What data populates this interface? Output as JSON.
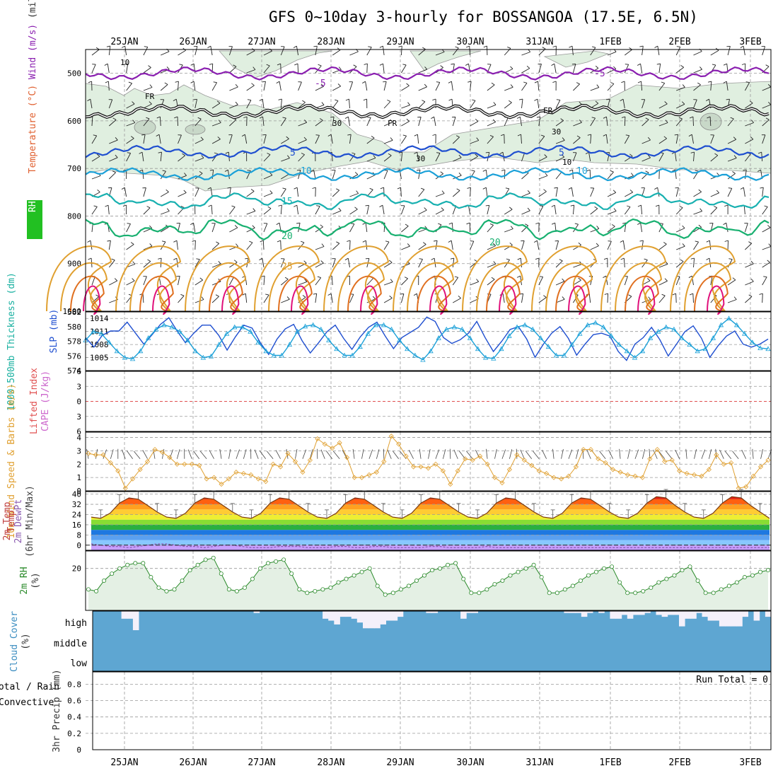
{
  "title": "GFS 0~10day 3-hourly for BOSSANGOA (17.5E, 6.5N)",
  "dates": [
    "25JAN",
    "26JAN",
    "27JAN",
    "28JAN",
    "29JAN",
    "30JAN",
    "31JAN",
    "1FEB",
    "2FEB",
    "3FEB"
  ],
  "run_total": "Run Total = 0",
  "colors": {
    "purple": "#8a1fb0",
    "blue": "#1f4fd0",
    "lblue": "#1aa0d8",
    "teal": "#18b0b0",
    "green": "#18b070",
    "orange": "#e0a030",
    "dorange": "#e07020",
    "magenta": "#e0107a",
    "rhfill": "#e0efe0",
    "cloud": "#5ea6d2",
    "grid": "#999999"
  },
  "chart_data": [
    {
      "type": "line",
      "panel": "upper-air",
      "ylabel_parts": [
        "RH (%)",
        "Temperature (°C)",
        "Wind (m/s)",
        "(millibars)"
      ],
      "yticks": [
        500,
        600,
        700,
        800,
        900,
        1000
      ],
      "ylim": [
        450,
        1000
      ],
      "y_reversed": true,
      "isotherm_labels": [
        "-5",
        "-5",
        "5",
        "5",
        "10",
        "10",
        "15",
        "20",
        "20",
        "25"
      ],
      "freezing_label": "FR",
      "rh_labels": [
        "10",
        "30",
        "30",
        "30",
        "10"
      ],
      "isotherms": [
        {
          "name": "-5",
          "pressure": 500
        },
        {
          "name": "0",
          "pressure": 580
        },
        {
          "name": "5",
          "pressure": 665
        },
        {
          "name": "10",
          "pressure": 712
        },
        {
          "name": "15",
          "pressure": 765
        },
        {
          "name": "20",
          "pressure": 820
        }
      ]
    },
    {
      "type": "line",
      "panel": "thickness-slp",
      "ylabel": "1000-500mb Thickness (dm)",
      "y2label": "SLP (mb)",
      "yticks_left": [
        574,
        576,
        578,
        580,
        582
      ],
      "yticks_right": [
        1005,
        1008,
        1011,
        1014
      ],
      "ylim_left": [
        574,
        582
      ],
      "ylim_right": [
        1002,
        1015.5
      ],
      "series": [
        {
          "name": "1000-500mb Thickness (dm)",
          "color": "#1f4fd0",
          "values": [
            578.5,
            577.2,
            578.8,
            579.4,
            579.4,
            580.6,
            579.1,
            577.6,
            578.9,
            580.3,
            581.2,
            579.4,
            577.8,
            579.1,
            580.2,
            580.2,
            578.8,
            576.8,
            578.6,
            580.2,
            579.8,
            577.8,
            576.2,
            578.3,
            579.7,
            580.3,
            578.1,
            576.4,
            577.8,
            579.3,
            580.2,
            578.4,
            576.9,
            578.6,
            579.9,
            580.6,
            578.7,
            577.0,
            578.5,
            579.2,
            579.9,
            581.3,
            580.7,
            578.5,
            577.7,
            578.2,
            579.1,
            580.7,
            578.5,
            576.6,
            578.0,
            579.6,
            580.0,
            578.3,
            575.8,
            577.6,
            579.1,
            580.0,
            578.4,
            576.1,
            577.6,
            578.9,
            579.1,
            578.7,
            576.6,
            575.4,
            577.6,
            578.5,
            579.9,
            578.2,
            576.0,
            577.6,
            579.3,
            580.1,
            578.4,
            575.8,
            577.4,
            578.7,
            579.4,
            577.6,
            577.2,
            577.6,
            578.3
          ]
        },
        {
          "name": "SLP (mb)",
          "color": "#1aa0d8",
          "values": [
            1009,
            1011,
            1010.5,
            1008.5,
            1006.5,
            1005,
            1004.7,
            1006.5,
            1009.5,
            1011.5,
            1012.5,
            1012,
            1011,
            1009,
            1006.5,
            1005,
            1005.3,
            1008,
            1010.5,
            1012,
            1012,
            1011,
            1008.5,
            1006.5,
            1005.5,
            1005.5,
            1008,
            1011,
            1012.2,
            1012.5,
            1011.5,
            1009,
            1007,
            1005.5,
            1005.5,
            1007.5,
            1010.5,
            1012.5,
            1012.5,
            1011.5,
            1009,
            1007,
            1005.5,
            1004.5,
            1006.5,
            1009.5,
            1011.5,
            1012,
            1011.5,
            1009.5,
            1007,
            1005,
            1004.8,
            1007,
            1010,
            1012,
            1012.5,
            1011.5,
            1009.5,
            1007.5,
            1005.5,
            1005.5,
            1008,
            1010.5,
            1012.5,
            1013,
            1012,
            1010,
            1008,
            1006.5,
            1005,
            1006.5,
            1009.5,
            1011,
            1012,
            1011.5,
            1009.5,
            1008,
            1006.5,
            1007,
            1009.5,
            1012.5,
            1014,
            1012.5,
            1010.5,
            1008.5,
            1007.2,
            1007
          ]
        }
      ]
    },
    {
      "type": "line",
      "panel": "stability",
      "ylabel": "Lifted Index",
      "y2label": "CAPE (J/kg)",
      "yticks": [
        -6,
        -3,
        0,
        3,
        6
      ],
      "ylim": [
        -6,
        6
      ],
      "series": [
        {
          "name": "Lifted Index",
          "color": "#e05050",
          "values": [
            0,
            0
          ]
        }
      ]
    },
    {
      "type": "line",
      "panel": "wind10m",
      "ylabel": "10m Wind Speed & Barbs (m/s)",
      "yticks": [
        0,
        1,
        2,
        3,
        4
      ],
      "ylim": [
        0,
        4.4
      ],
      "series": [
        {
          "name": "10m Wind Speed",
          "color": "#e0a030",
          "values": [
            2.8,
            2.7,
            2.7,
            2.1,
            1.5,
            0.2,
            0.9,
            1.6,
            2.2,
            3.1,
            2.9,
            2.5,
            2.0,
            2.0,
            2.0,
            1.9,
            0.9,
            1.0,
            0.5,
            0.9,
            1.4,
            1.3,
            1.2,
            0.9,
            0.7,
            2.0,
            1.8,
            2.8,
            2.2,
            1.4,
            2.3,
            3.9,
            3.5,
            3.2,
            3.6,
            2.5,
            1.0,
            1.0,
            1.2,
            1.4,
            2.2,
            4.1,
            3.5,
            2.6,
            1.8,
            1.8,
            1.7,
            2.0,
            1.5,
            0.5,
            1.5,
            2.4,
            2.3,
            2.6,
            2.0,
            1.0,
            0.6,
            1.6,
            2.7,
            2.3,
            1.9,
            1.5,
            1.3,
            1.0,
            0.9,
            1.1,
            1.8,
            3.1,
            3.1,
            2.4,
            2.1,
            1.6,
            1.4,
            1.2,
            1.1,
            1.0,
            2.4,
            3.1,
            2.2,
            2.3,
            1.5,
            1.3,
            1.2,
            1.1,
            1.6,
            2.7,
            2.0,
            2.1,
            0.2,
            0.3,
            1.1,
            1.8,
            2.3
          ]
        }
      ]
    },
    {
      "type": "area",
      "panel": "temperature",
      "ylabel": "2m Temp, 2m DewPt (6hr Min/Max) (°C)",
      "yticks": [
        0,
        8,
        16,
        24,
        32,
        40
      ],
      "ylim": [
        -4,
        42
      ],
      "series": [
        {
          "name": "2m Temp",
          "color": "#7a3a10",
          "values": [
            22,
            21,
            25,
            33,
            37,
            36,
            31,
            26,
            22,
            21,
            25,
            33,
            37,
            36,
            31,
            26,
            22,
            21,
            25,
            33,
            37,
            36,
            31,
            26,
            22,
            21,
            25,
            33,
            37,
            36,
            31,
            26,
            22,
            21,
            25,
            33,
            37,
            36,
            31,
            26,
            22,
            21,
            25,
            33,
            37,
            36,
            31,
            26,
            22,
            21,
            25,
            33,
            37,
            36,
            31,
            26,
            22,
            21,
            25,
            33,
            38,
            37,
            31,
            26,
            22,
            21,
            25,
            33,
            38,
            37,
            31,
            26,
            21
          ]
        },
        {
          "name": "2m DewPt",
          "color": "#8a5ab0",
          "values": [
            1,
            0,
            -1,
            -1,
            -2,
            -1,
            0,
            1,
            1,
            0,
            -1,
            -1,
            -2,
            -1,
            0,
            0,
            -1,
            -2,
            -2,
            -2,
            -1,
            -1,
            -1,
            -2,
            -2,
            -2,
            -1,
            -1,
            -2,
            -2,
            -1,
            -1,
            -2,
            -2,
            -2,
            -2,
            -1,
            -1,
            -2,
            -2,
            -2,
            -2,
            -1,
            -2,
            -2,
            -2,
            -2,
            -2,
            -2,
            -2,
            -2,
            -2,
            -2,
            -2,
            -2,
            -2,
            -2,
            -2,
            -2,
            -2,
            -2,
            -2,
            -2,
            -2,
            -2,
            -2,
            -2,
            -2,
            -2,
            -2,
            -2,
            -2,
            -2
          ]
        }
      ]
    },
    {
      "type": "area",
      "panel": "rh",
      "ylabel": "2m RH (%)",
      "yticks": [
        20
      ],
      "ylim": [
        -4,
        30
      ],
      "series": [
        {
          "name": "2m RH",
          "color": "#2a8a2a",
          "values": [
            8,
            7,
            13,
            17,
            20,
            22,
            23,
            23,
            15,
            9,
            7,
            8,
            13,
            19,
            22,
            25,
            26,
            17,
            8,
            7,
            9,
            14,
            20,
            23,
            24,
            25,
            17,
            8,
            6,
            7,
            8,
            9,
            12,
            14,
            16,
            18,
            20,
            10,
            5,
            6,
            8,
            10,
            13,
            16,
            19,
            20,
            22,
            23,
            14,
            6,
            6,
            8,
            11,
            13,
            16,
            18,
            20,
            22,
            15,
            6,
            6,
            8,
            10,
            13,
            16,
            18,
            20,
            21,
            12,
            6,
            6,
            7,
            9,
            12,
            14,
            16,
            19,
            21,
            13,
            6,
            6,
            8,
            10,
            12,
            15,
            16,
            18,
            19
          ]
        }
      ]
    },
    {
      "type": "bar",
      "panel": "cloud",
      "ylabel": "Cloud Cover (%)",
      "yticks": [
        "high",
        "middle",
        "low"
      ],
      "series": [
        {
          "name": "high cloud clear fraction",
          "values": [
            0,
            0,
            0,
            0,
            0,
            0.4,
            0.4,
            1.0,
            0,
            0,
            0,
            0,
            0,
            0,
            0,
            0,
            0,
            0,
            0,
            0,
            0,
            0,
            0,
            0,
            0,
            0,
            0,
            0,
            0.1,
            0,
            0,
            0,
            0,
            0,
            0,
            0,
            0,
            0,
            0,
            0,
            0.4,
            0.5,
            0.7,
            0.3,
            0.3,
            0.4,
            0.6,
            0.9,
            0.9,
            0.9,
            0.7,
            0.5,
            0.5,
            0.3,
            0,
            0,
            0,
            0,
            0.1,
            0.1,
            0,
            0,
            0,
            0,
            0.4,
            0.1,
            0.1,
            0,
            0,
            0,
            0,
            0,
            0,
            0,
            0,
            0,
            0,
            0,
            0,
            0,
            0,
            0,
            0.1,
            0.1,
            0.1,
            0.3,
            0.1,
            0,
            0.1,
            0,
            0.4,
            0.4,
            0.2,
            0.4,
            0.2,
            0.2,
            0.1,
            0,
            0.2,
            0.3,
            0.2,
            0.2,
            0.8,
            0.4,
            0.4,
            0.1,
            0.3,
            0.5,
            0.5,
            0.8,
            0.8,
            0.8,
            0.8,
            0.3,
            0,
            0.5,
            0,
            0.3
          ]
        }
      ]
    },
    {
      "type": "bar",
      "panel": "precip",
      "ylabel": "3hr Precip (mm)",
      "legend": [
        "Total / Rain",
        "Convective"
      ],
      "yticks": [
        0,
        0.2,
        0.4,
        0.6,
        0.8
      ],
      "ylim": [
        0,
        0.95
      ],
      "series": [
        {
          "name": "3hr Precip",
          "values": [
            0
          ]
        }
      ]
    }
  ]
}
